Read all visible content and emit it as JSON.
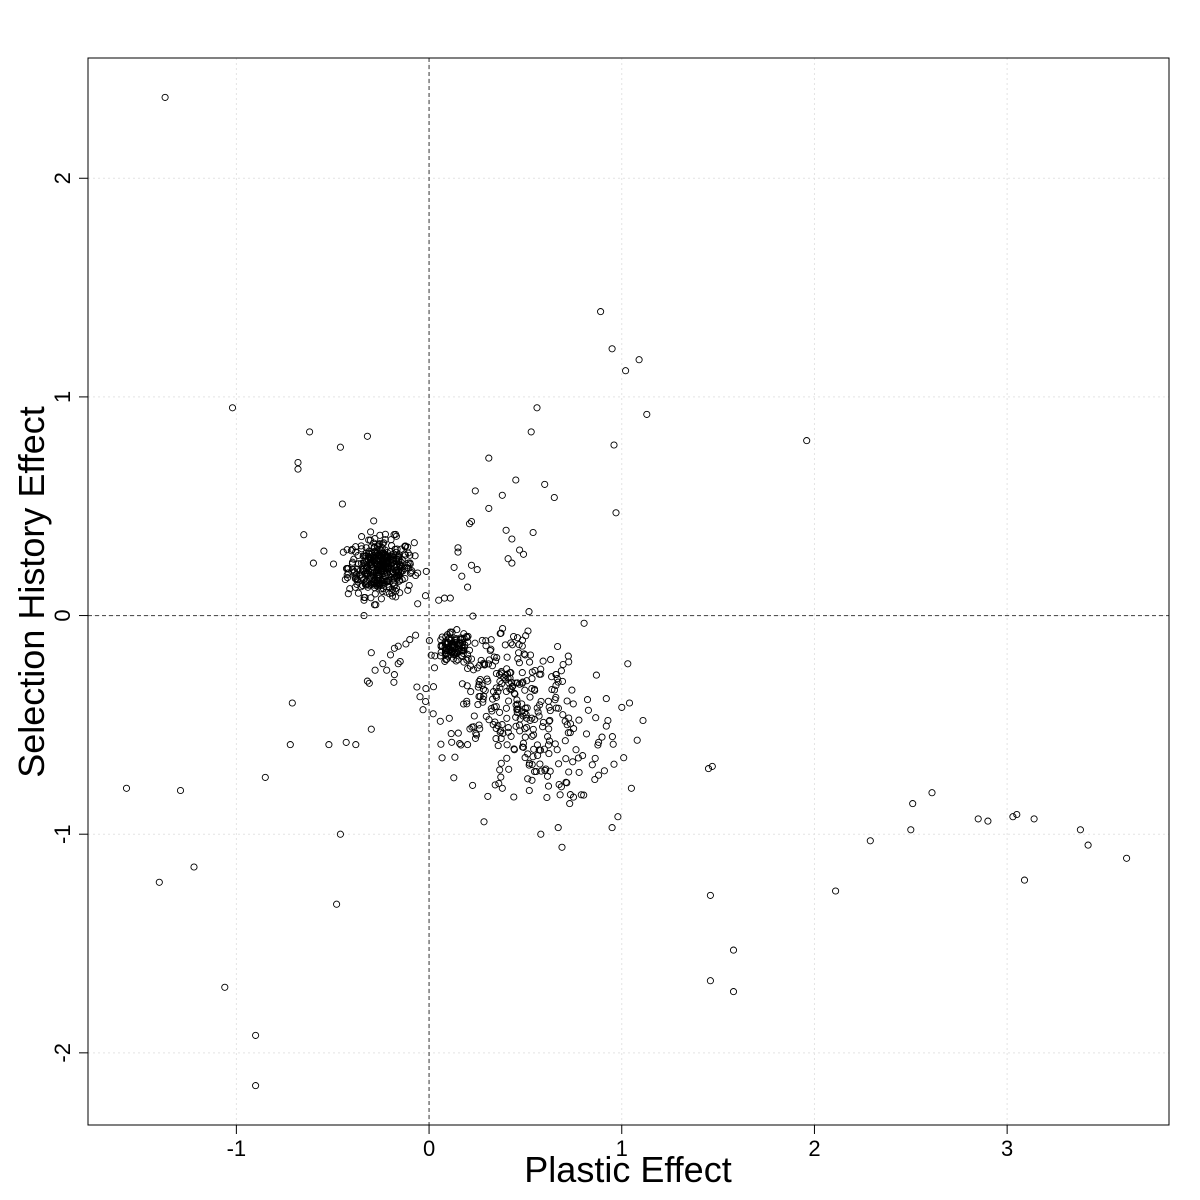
{
  "chart_data": {
    "type": "scatter",
    "xlabel": "Plastic Effect",
    "ylabel": "Selection History Effect",
    "xlim": [
      -1.77,
      3.84
    ],
    "ylim": [
      -2.33,
      2.55
    ],
    "x_ticks": [
      -1,
      0,
      1,
      2,
      3
    ],
    "x_tick_labels": [
      "-1",
      "0",
      "1",
      "2",
      "3"
    ],
    "y_ticks": [
      -2,
      -1,
      0,
      1,
      2
    ],
    "y_tick_labels": [
      "-2",
      "-1",
      "0",
      "1",
      "2"
    ],
    "reference_lines": {
      "x": 0,
      "y": 0
    },
    "grid": true,
    "marker": "open circle",
    "points": [
      [
        -1.37,
        2.37
      ],
      [
        -1.02,
        0.95
      ],
      [
        -0.62,
        0.84
      ],
      [
        -0.46,
        0.77
      ],
      [
        -0.32,
        0.82
      ],
      [
        -0.68,
        0.67
      ],
      [
        -0.68,
        0.7
      ],
      [
        -0.65,
        0.37
      ],
      [
        -0.6,
        0.24
      ],
      [
        -0.45,
        0.51
      ],
      [
        0.89,
        1.39
      ],
      [
        0.95,
        1.22
      ],
      [
        1.02,
        1.12
      ],
      [
        1.09,
        1.17
      ],
      [
        1.13,
        0.92
      ],
      [
        0.96,
        0.78
      ],
      [
        0.97,
        0.47
      ],
      [
        0.56,
        0.95
      ],
      [
        0.53,
        0.84
      ],
      [
        0.31,
        0.72
      ],
      [
        0.6,
        0.6
      ],
      [
        0.45,
        0.62
      ],
      [
        0.65,
        0.54
      ],
      [
        0.24,
        0.57
      ],
      [
        0.38,
        0.55
      ],
      [
        0.31,
        0.49
      ],
      [
        0.21,
        0.42
      ],
      [
        0.4,
        0.39
      ],
      [
        0.54,
        0.38
      ],
      [
        0.43,
        0.35
      ],
      [
        0.49,
        0.28
      ],
      [
        0.15,
        0.31
      ],
      [
        0.15,
        0.29
      ],
      [
        0.17,
        0.18
      ],
      [
        0.2,
        0.13
      ],
      [
        0.22,
        0.23
      ],
      [
        0.25,
        0.21
      ],
      [
        0.13,
        0.22
      ],
      [
        0.08,
        0.08
      ],
      [
        0.11,
        0.08
      ],
      [
        0.05,
        0.07
      ],
      [
        0.43,
        0.24
      ],
      [
        0.41,
        0.26
      ],
      [
        0.47,
        0.3
      ],
      [
        0.22,
        0.43
      ],
      [
        1.96,
        0.8
      ],
      [
        -0.07,
        -0.09
      ],
      [
        -0.1,
        -0.11
      ],
      [
        -0.12,
        -0.13
      ],
      [
        -0.16,
        -0.14
      ],
      [
        -0.18,
        -0.15
      ],
      [
        -0.2,
        -0.18
      ],
      [
        -0.15,
        -0.21
      ],
      [
        -0.16,
        -0.22
      ],
      [
        -0.24,
        -0.22
      ],
      [
        -0.22,
        -0.25
      ],
      [
        -0.18,
        -0.27
      ],
      [
        -0.3,
        -0.17
      ],
      [
        -0.28,
        -0.25
      ],
      [
        -0.31,
        -0.31
      ],
      [
        -0.32,
        -0.3
      ],
      [
        -0.3,
        -0.52
      ],
      [
        -0.71,
        -0.4
      ],
      [
        -0.72,
        -0.59
      ],
      [
        -0.52,
        -0.59
      ],
      [
        -0.43,
        -0.58
      ],
      [
        -0.38,
        -0.59
      ],
      [
        -0.85,
        -0.74
      ],
      [
        -1.57,
        -0.79
      ],
      [
        -1.29,
        -0.8
      ],
      [
        -1.4,
        -1.22
      ],
      [
        -1.22,
        -1.15
      ],
      [
        -0.46,
        -1.0
      ],
      [
        -0.48,
        -1.32
      ],
      [
        -1.06,
        -1.7
      ],
      [
        -0.9,
        -1.92
      ],
      [
        -0.9,
        -2.15
      ],
      [
        1.45,
        -0.7
      ],
      [
        1.47,
        -0.69
      ],
      [
        1.46,
        -1.28
      ],
      [
        1.46,
        -1.67
      ],
      [
        1.58,
        -1.53
      ],
      [
        1.58,
        -1.72
      ],
      [
        2.11,
        -1.26
      ],
      [
        2.29,
        -1.03
      ],
      [
        2.5,
        -0.98
      ],
      [
        2.51,
        -0.86
      ],
      [
        2.61,
        -0.81
      ],
      [
        2.85,
        -0.93
      ],
      [
        2.9,
        -0.94
      ],
      [
        3.03,
        -0.92
      ],
      [
        3.05,
        -0.91
      ],
      [
        3.14,
        -0.93
      ],
      [
        3.09,
        -1.21
      ],
      [
        3.38,
        -0.98
      ],
      [
        3.42,
        -1.05
      ],
      [
        3.62,
        -1.11
      ],
      [
        0.58,
        -1.0
      ],
      [
        0.67,
        -0.97
      ],
      [
        0.69,
        -1.06
      ],
      [
        0.95,
        -0.97
      ],
      [
        0.98,
        -0.92
      ],
      [
        1.05,
        -0.79
      ],
      [
        0.38,
        -0.79
      ],
      [
        0.44,
        -0.83
      ],
      [
        0.52,
        -0.8
      ],
      [
        0.62,
        -0.78
      ],
      [
        0.79,
        -0.82
      ],
      [
        0.88,
        -0.73
      ],
      [
        0.2,
        -0.59
      ],
      [
        1.01,
        -0.65
      ],
      [
        1.08,
        -0.57
      ],
      [
        1.11,
        -0.48
      ],
      [
        1.04,
        -0.4
      ],
      [
        1.0,
        -0.42
      ],
      [
        0.92,
        -0.38
      ],
      [
        0.88,
        -0.58
      ],
      [
        0.96,
        -0.68
      ],
      [
        0.91,
        -0.71
      ],
      [
        0.86,
        -0.75
      ],
      [
        0.73,
        -0.86
      ],
      [
        0.68,
        -0.82
      ]
    ],
    "clusters": [
      {
        "center": [
          -0.25,
          0.22
        ],
        "spread": [
          0.085,
          0.065
        ],
        "count": 380
      },
      {
        "center": [
          0.13,
          -0.15
        ],
        "spread": [
          0.045,
          0.035
        ],
        "count": 95
      },
      {
        "center": [
          0.4,
          -0.34
        ],
        "spread": [
          0.2,
          0.15
        ],
        "count": 230
      },
      {
        "center": [
          0.55,
          -0.6
        ],
        "spread": [
          0.17,
          0.12
        ],
        "count": 95
      }
    ]
  }
}
